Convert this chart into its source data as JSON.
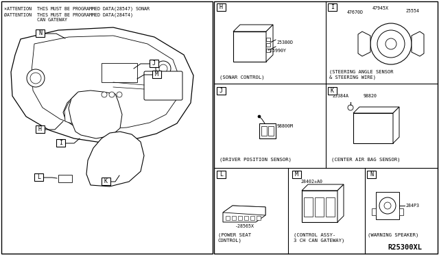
{
  "bg_color": "#ffffff",
  "attention_lines": [
    "×ATTENTION  THIS MUST BE PROGRAMMED DATA(28547) SONAR",
    "ØATTENTION  THIS MUST BE PROGRAMMED DATA(284T4)",
    "            CAN GATEWAY"
  ],
  "diagram_ref": "R25300XL"
}
